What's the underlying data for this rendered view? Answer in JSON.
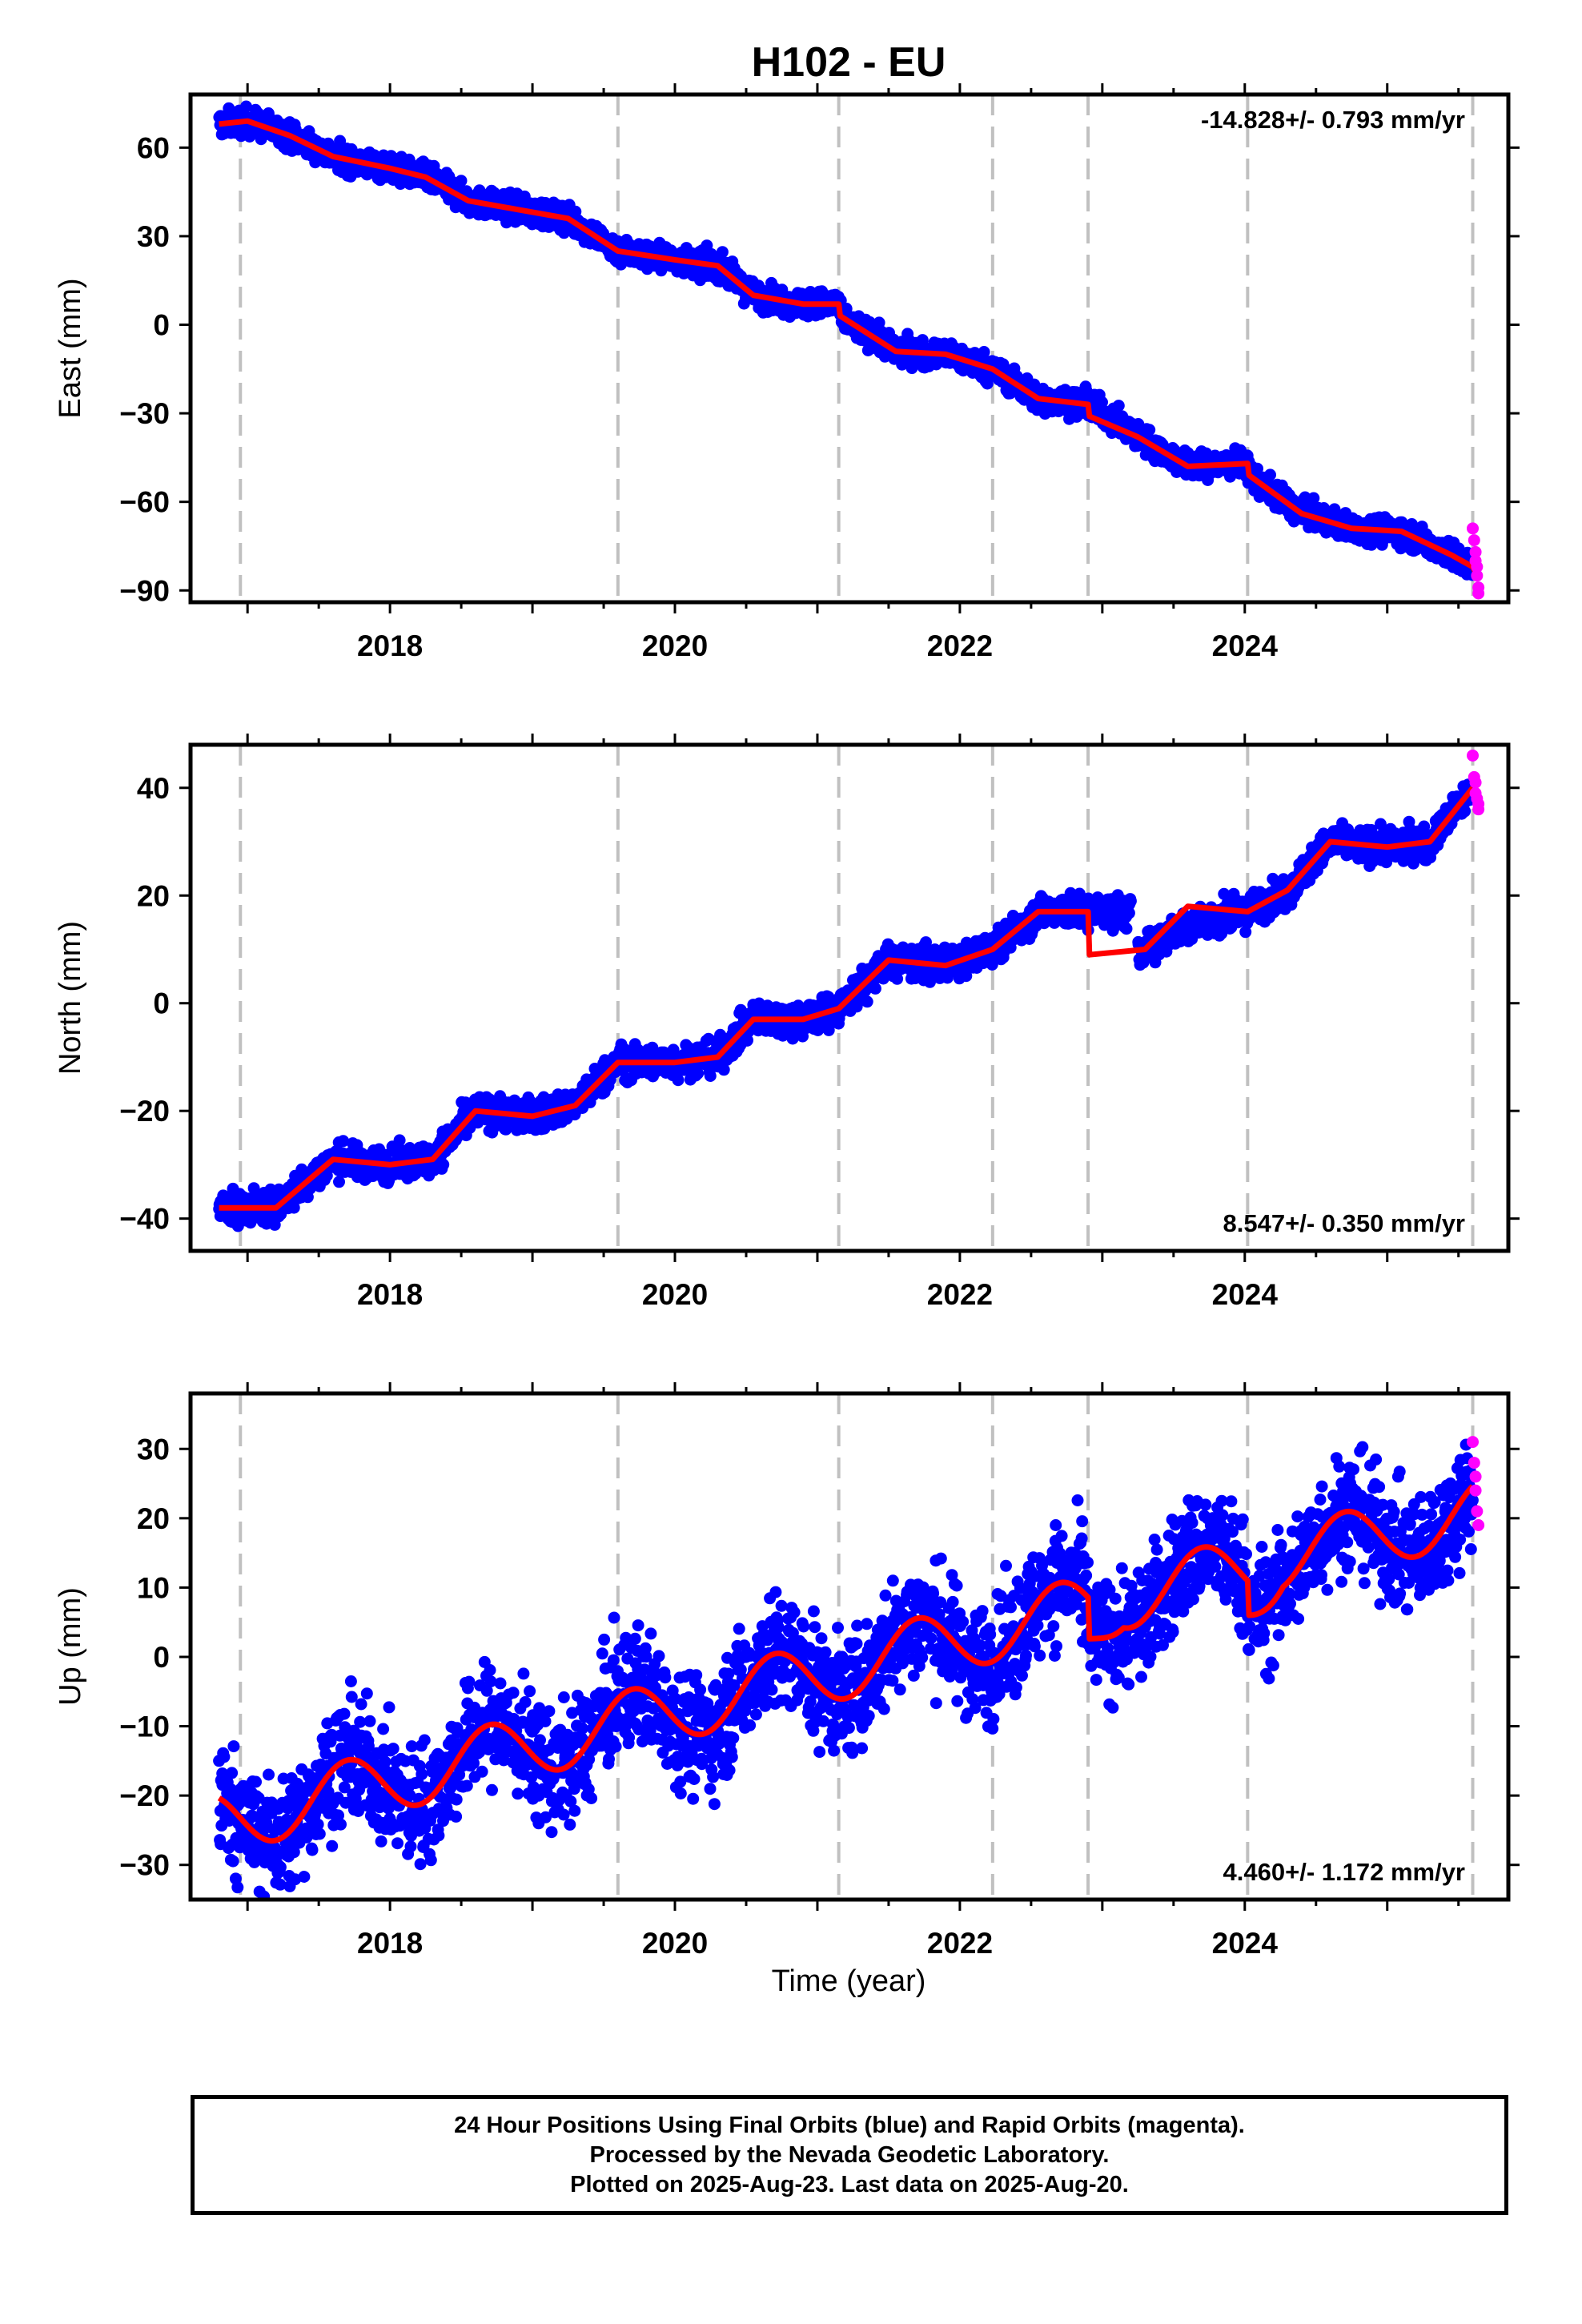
{
  "title": "H102 - EU",
  "xlabel": "Time (year)",
  "footer": {
    "line1": "24 Hour Positions Using Final Orbits (blue) and Rapid Orbits (magenta).",
    "line2": "Processed by the Nevada Geodetic Laboratory.",
    "line3": "Plotted on 2025-Aug-23. Last data on 2025-Aug-20."
  },
  "colors": {
    "final": "#0000ff",
    "rapid": "#ff00ff",
    "model": "#ff0000",
    "breaks": "#c0c0c0",
    "frame": "#000000"
  },
  "chart_data": [
    {
      "type": "scatter",
      "component": "East",
      "ylabel": "East (mm)",
      "xlim": [
        2016.6,
        2025.85
      ],
      "ylim": [
        -94,
        78
      ],
      "yticks": [
        60,
        30,
        0,
        -30,
        -60,
        -90
      ],
      "ytick_labels": [
        "60",
        "30",
        "0",
        "−30",
        "−60",
        "−90"
      ],
      "xticks": [
        2018,
        2020,
        2022,
        2024
      ],
      "rate_label": "-14.828+/- 0.793 mm/yr",
      "rate_position": "top-right",
      "breaks": [
        2016.95,
        2019.6,
        2021.15,
        2022.23,
        2022.9,
        2024.02,
        2025.6
      ],
      "model": {
        "x": [
          2016.8,
          2017.0,
          2017.3,
          2017.6,
          2018.0,
          2018.25,
          2018.55,
          2018.9,
          2019.25,
          2019.6,
          2020.0,
          2020.3,
          2020.55,
          2020.9,
          2021.15,
          2021.16,
          2021.55,
          2021.9,
          2022.23,
          2022.55,
          2022.9,
          2022.91,
          2023.25,
          2023.6,
          2024.02,
          2024.03,
          2024.4,
          2024.75,
          2025.1,
          2025.45,
          2025.6,
          2025.62
        ],
        "y": [
          68,
          69,
          64,
          57,
          53,
          50,
          42,
          39,
          36,
          25,
          22,
          20,
          10,
          7,
          7,
          3,
          -9,
          -10,
          -15,
          -25,
          -27,
          -31,
          -38,
          -48,
          -47,
          -51,
          -64,
          -69,
          -70,
          -78,
          -82,
          -84
        ]
      },
      "series_final": {
        "name": "Final Orbits",
        "trend_x": [
          2016.8,
          2017.0,
          2017.3,
          2017.6,
          2018.0,
          2018.25,
          2018.55,
          2018.9,
          2019.25,
          2019.6,
          2020.0,
          2020.3,
          2020.55,
          2020.9,
          2021.15,
          2021.16,
          2021.55,
          2021.9,
          2022.23,
          2022.55,
          2022.9,
          2022.91,
          2023.25,
          2023.6,
          2024.02,
          2024.03,
          2024.4,
          2024.75,
          2025.1,
          2025.45,
          2025.6
        ],
        "trend_y": [
          68,
          69,
          64,
          57,
          53,
          50,
          42,
          39,
          36,
          25,
          22,
          20,
          10,
          7,
          7,
          3,
          -9,
          -10,
          -15,
          -25,
          -27,
          -27,
          -38,
          -48,
          -47,
          -51,
          -64,
          -69,
          -70,
          -78,
          -82
        ],
        "x_range": [
          2016.8,
          2025.6
        ],
        "scatter": 2.2,
        "spread": 3.6
      },
      "series_rapid": {
        "name": "Rapid Orbits",
        "x": [
          2025.6,
          2025.61,
          2025.62,
          2025.62,
          2025.63,
          2025.63,
          2025.64,
          2025.64
        ],
        "y": [
          -69,
          -73,
          -77,
          -80,
          -82,
          -85,
          -89,
          -91
        ]
      }
    },
    {
      "type": "scatter",
      "component": "North",
      "ylabel": "North (mm)",
      "xlim": [
        2016.6,
        2025.85
      ],
      "ylim": [
        -46,
        48
      ],
      "yticks": [
        40,
        20,
        0,
        -20,
        -40
      ],
      "ytick_labels": [
        "40",
        "20",
        "0",
        "−20",
        "−40"
      ],
      "xticks": [
        2018,
        2020,
        2022,
        2024
      ],
      "rate_label": "8.547+/- 0.350 mm/yr",
      "rate_position": "bottom-right",
      "breaks": [
        2016.95,
        2019.6,
        2021.15,
        2022.23,
        2022.9,
        2024.02,
        2025.6
      ],
      "model": {
        "x": [
          2016.8,
          2017.2,
          2017.6,
          2018.0,
          2018.3,
          2018.6,
          2019.0,
          2019.3,
          2019.6,
          2020.0,
          2020.3,
          2020.55,
          2020.9,
          2021.15,
          2021.5,
          2021.9,
          2022.23,
          2022.55,
          2022.9,
          2022.91,
          2023.3,
          2023.6,
          2024.02,
          2024.3,
          2024.6,
          2025.0,
          2025.3,
          2025.6
        ],
        "y": [
          -38,
          -38,
          -29,
          -30,
          -29,
          -20,
          -21,
          -19,
          -11,
          -11,
          -10,
          -3,
          -3,
          -1,
          8,
          7,
          10,
          17,
          17,
          9,
          10,
          18,
          17,
          21,
          30,
          29,
          30,
          40
        ]
      },
      "series_final": {
        "name": "Final Orbits",
        "trend_x": [
          2016.8,
          2017.2,
          2017.6,
          2018.0,
          2018.3,
          2018.6,
          2019.0,
          2019.3,
          2019.6,
          2020.0,
          2020.3,
          2020.55,
          2020.9,
          2021.15,
          2021.5,
          2021.9,
          2022.23,
          2022.55,
          2022.9,
          2023.2,
          2023.25,
          2023.6,
          2024.02,
          2024.3,
          2024.6,
          2025.0,
          2025.3,
          2025.6
        ],
        "trend_y": [
          -38,
          -38,
          -29,
          -30,
          -29,
          -20,
          -21,
          -19,
          -11,
          -11,
          -10,
          -3,
          -3,
          -1,
          8,
          7,
          10,
          17,
          17,
          17,
          9,
          15,
          17,
          21,
          30,
          29,
          30,
          40
        ],
        "x_range": [
          2016.8,
          2025.6
        ],
        "gap": [
          2023.2,
          2023.25
        ],
        "scatter": 1.5,
        "spread": 2.6
      },
      "series_rapid": {
        "name": "Rapid Orbits",
        "x": [
          2025.6,
          2025.61,
          2025.62,
          2025.62,
          2025.63,
          2025.64,
          2025.64
        ],
        "y": [
          46,
          42,
          41,
          39,
          38,
          37,
          36
        ]
      }
    },
    {
      "type": "scatter",
      "component": "Up",
      "ylabel": "Up (mm)",
      "xlim": [
        2016.6,
        2025.85
      ],
      "ylim": [
        -35,
        38
      ],
      "yticks": [
        30,
        20,
        10,
        0,
        -10,
        -20,
        -30
      ],
      "ytick_labels": [
        "30",
        "20",
        "10",
        "0",
        "−10",
        "−20",
        "−30"
      ],
      "xticks": [
        2018,
        2020,
        2022,
        2024
      ],
      "rate_label": "4.460+/- 1.172 mm/yr",
      "rate_position": "bottom-right",
      "breaks": [
        2016.95,
        2019.6,
        2021.15,
        2022.23,
        2022.9,
        2024.02,
        2025.6
      ],
      "model": {
        "base_start": [
          2016.8,
          -24
        ],
        "base_end": [
          2025.6,
          21
        ],
        "seasonal_amplitude": 4.5,
        "steps": [
          [
            2022.9,
            -6
          ],
          [
            2024.02,
            -5
          ]
        ]
      },
      "series_final": {
        "name": "Final Orbits",
        "x_range": [
          2016.8,
          2025.6
        ],
        "scatter": 4.2,
        "spread": 10
      },
      "series_rapid": {
        "name": "Rapid Orbits",
        "x": [
          2025.6,
          2025.61,
          2025.62,
          2025.62,
          2025.63,
          2025.64
        ],
        "y": [
          31,
          28,
          26,
          24,
          21,
          19
        ]
      }
    }
  ]
}
